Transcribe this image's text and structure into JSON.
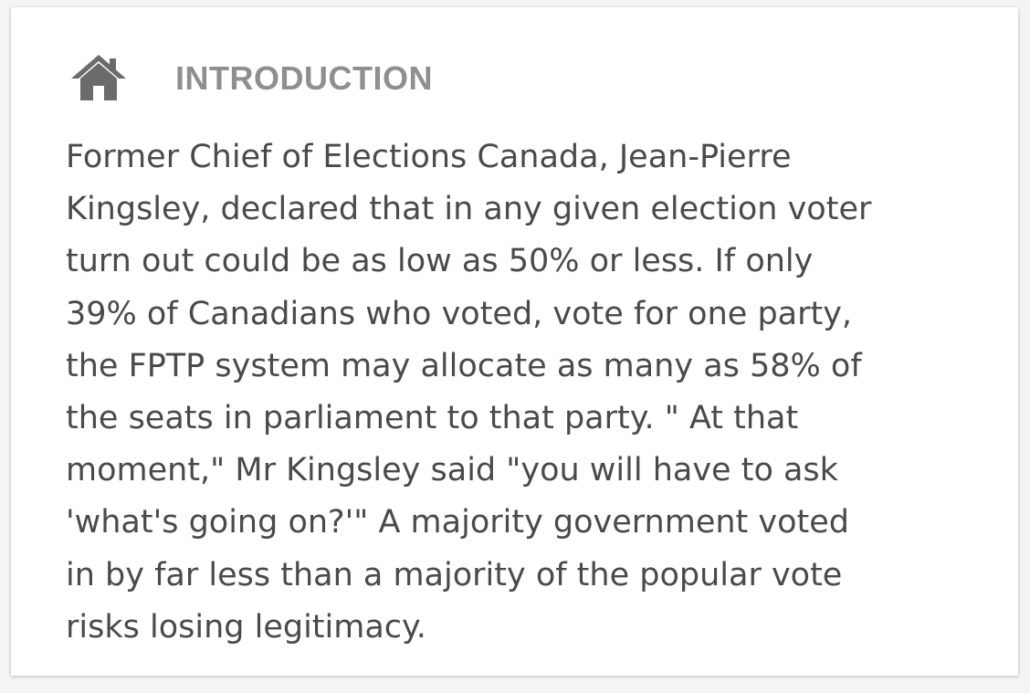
{
  "section": {
    "icon": "home-icon",
    "title": "INTRODUCTION"
  },
  "body": {
    "lines": [
      "Former Chief of Elections Canada, Jean-Pierre",
      "Kingsley, declared that in any given election voter",
      "turn out could be as low as 50% or less. If only",
      "39% of Canadians who voted, vote for one party,",
      "the FPTP system may allocate as many as 58% of",
      "the seats in parliament to that party. \" At that",
      "moment,\" Mr Kingsley said \"you will have to ask",
      "'what's going on?'\" A majority government voted",
      "in by far less than a majority of the popular vote",
      "risks losing legitimacy."
    ]
  },
  "colors": {
    "icon": "#6b6b6b",
    "title": "#8f8f8f",
    "text": "#4a4a4a",
    "card": "#ffffff"
  }
}
